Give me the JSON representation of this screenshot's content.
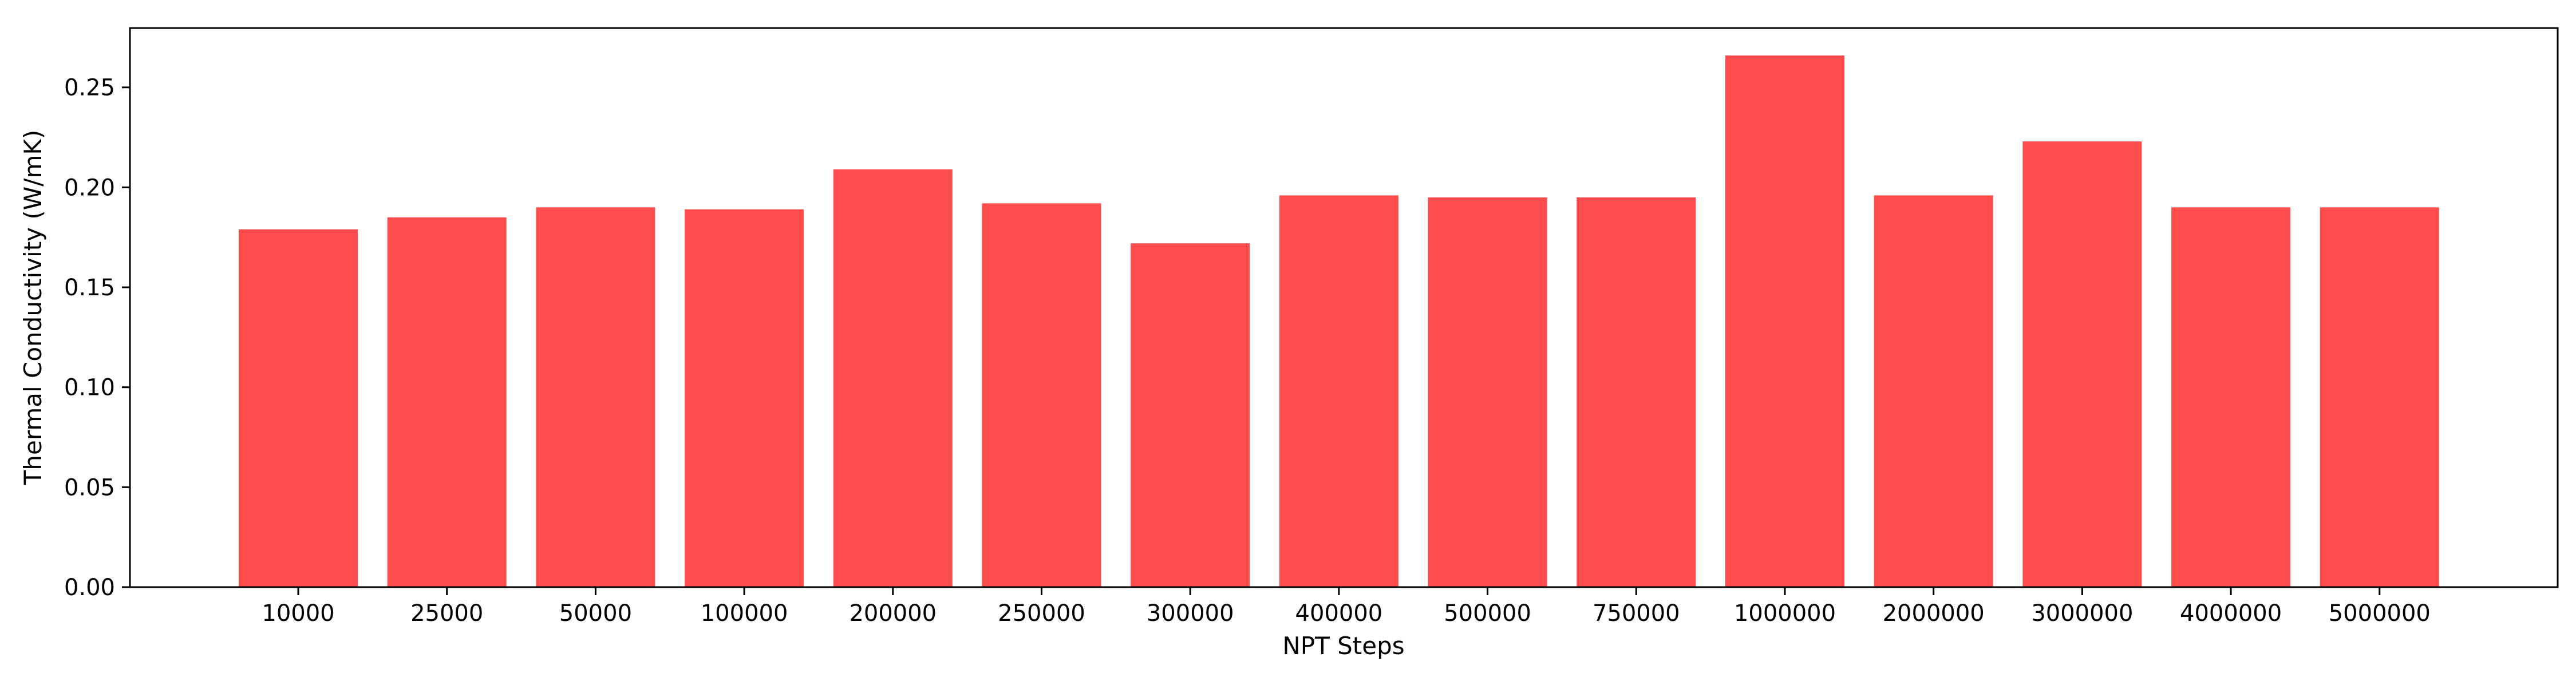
{
  "chart_data": {
    "type": "bar",
    "title": "",
    "xlabel": "NPT Steps",
    "ylabel": "Thermal Conductivity (W/mK)",
    "categories": [
      "10000",
      "25000",
      "50000",
      "100000",
      "200000",
      "250000",
      "300000",
      "400000",
      "500000",
      "750000",
      "1000000",
      "2000000",
      "3000000",
      "4000000",
      "5000000"
    ],
    "values": [
      0.179,
      0.185,
      0.19,
      0.189,
      0.209,
      0.192,
      0.172,
      0.196,
      0.195,
      0.195,
      0.266,
      0.196,
      0.223,
      0.19,
      0.19
    ],
    "ylim": [
      0.0,
      0.2797
    ],
    "yticks": [
      0.0,
      0.05,
      0.1,
      0.15,
      0.2,
      0.25
    ],
    "ytick_labels": [
      "0.00",
      "0.05",
      "0.10",
      "0.15",
      "0.20",
      "0.25"
    ],
    "grid": false,
    "legend": "none",
    "bar_color": "#ff4d4d",
    "axis_color": "#000000"
  }
}
